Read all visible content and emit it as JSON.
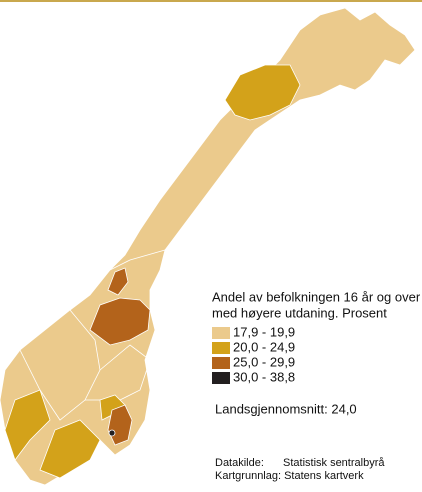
{
  "legend": {
    "title_lines": [
      "Andel av befolkningen 16 år og over",
      "med høyere utdaning. Prosent"
    ],
    "items": [
      {
        "label": "17,9 - 19,9",
        "color": "#ebca8c"
      },
      {
        "label": "20,0 - 24,9",
        "color": "#d3a21a"
      },
      {
        "label": "25,0 - 29,9",
        "color": "#b3631b"
      },
      {
        "label": "30,0 - 38,8",
        "color": "#231f20"
      }
    ]
  },
  "average": "Landsgjennomsnitt: 24,0",
  "source": {
    "data_label": "Datakilde:",
    "data_value": "Statistisk sentralbyrå",
    "map_label": "Kartgrunnlag: Statens kartverk"
  }
}
